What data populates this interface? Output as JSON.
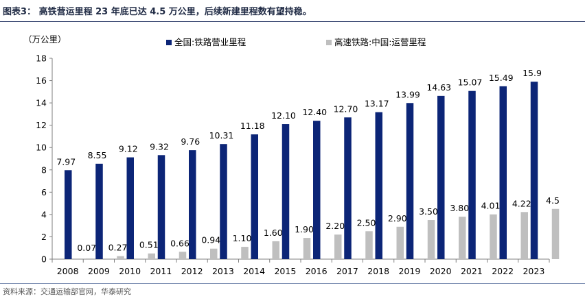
{
  "header": {
    "title": "图表3： 高铁营运里程 23 年底已达 4.5 万公里，后续新建里程数有望持稳。"
  },
  "footer": {
    "source": "资料来源：交通运输部官网，华泰研究"
  },
  "colors": {
    "series1": "#0c2577",
    "series2": "#bfbfbf",
    "axis": "#7f7f7f",
    "title_rule": "#2b3a67"
  },
  "chart_data": {
    "type": "bar",
    "ylabel": "（万公里）",
    "ylim": [
      0,
      18
    ],
    "yticks": [
      0,
      2,
      4,
      6,
      8,
      10,
      12,
      14,
      16,
      18
    ],
    "grid": false,
    "legend_position": "top",
    "categories": [
      "2008",
      "2009",
      "2010",
      "2011",
      "2012",
      "2013",
      "2014",
      "2015",
      "2016",
      "2017",
      "2018",
      "2019",
      "2020",
      "2021",
      "2022",
      "2023"
    ],
    "series": [
      {
        "name": "全国:铁路营业里程",
        "values": [
          7.97,
          8.55,
          9.12,
          9.32,
          9.76,
          10.31,
          11.18,
          12.1,
          12.4,
          12.7,
          13.17,
          13.99,
          14.63,
          15.07,
          15.49,
          15.9
        ],
        "labels": [
          "7.97",
          "8.55",
          "9.12",
          "9.32",
          "9.76",
          "10.31",
          "11.18",
          "12.10",
          "12.40",
          "12.70",
          "13.17",
          "13.99",
          "14.63",
          "15.07",
          "15.49",
          "15.9"
        ]
      },
      {
        "name": "高速铁路:中国:运营里程",
        "values": [
          0.07,
          0.27,
          0.51,
          0.66,
          0.94,
          1.1,
          1.6,
          1.9,
          2.2,
          2.5,
          2.9,
          3.5,
          3.8,
          4.01,
          4.22,
          4.5
        ],
        "labels": [
          "0.07",
          "0.27",
          "0.51",
          "0.66",
          "0.94",
          "1.10",
          "1.60",
          "1.90",
          "2.20",
          "2.50",
          "2.90",
          "3.50",
          "3.80",
          "4.01",
          "4.22",
          "4.5"
        ]
      }
    ]
  }
}
